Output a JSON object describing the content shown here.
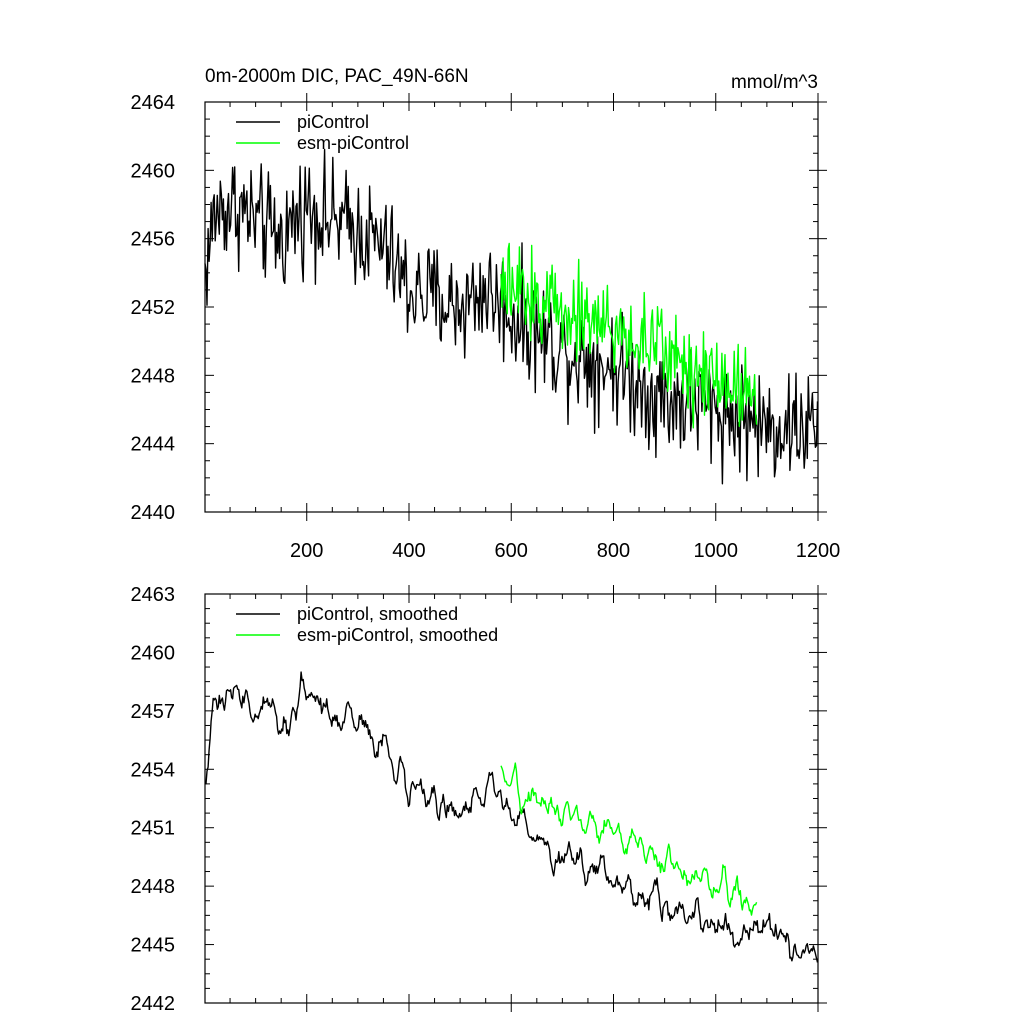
{
  "chart_data": [
    {
      "type": "line",
      "title": "0m-2000m DIC, PAC_49N-66N",
      "units": "mmol/m^3",
      "xlim": [
        1,
        1200
      ],
      "ylim": [
        2440,
        2464
      ],
      "yticks": [
        2440,
        2444,
        2448,
        2452,
        2456,
        2460,
        2464
      ],
      "xticks": [
        200,
        400,
        600,
        800,
        1000,
        1200
      ],
      "show_xtick_labels": true,
      "legend_position": "top-left",
      "series": [
        {
          "name": "piControl",
          "color": "#000000",
          "x_start": 1,
          "x_end": 1200,
          "anchors": [
            [
              1,
              2454
            ],
            [
              20,
              2457.5
            ],
            [
              60,
              2458
            ],
            [
              100,
              2457
            ],
            [
              150,
              2456
            ],
            [
              200,
              2458
            ],
            [
              250,
              2457
            ],
            [
              300,
              2456.5
            ],
            [
              350,
              2455.5
            ],
            [
              400,
              2453
            ],
            [
              450,
              2452.5
            ],
            [
              500,
              2452
            ],
            [
              550,
              2453
            ],
            [
              600,
              2451.5
            ],
            [
              650,
              2450.5
            ],
            [
              700,
              2449.5
            ],
            [
              750,
              2449
            ],
            [
              800,
              2448.5
            ],
            [
              850,
              2447.5
            ],
            [
              900,
              2446.5
            ],
            [
              950,
              2446.5
            ],
            [
              1000,
              2446
            ],
            [
              1050,
              2445.5
            ],
            [
              1100,
              2445
            ],
            [
              1150,
              2445
            ],
            [
              1200,
              2445
            ]
          ],
          "noise": 1.6,
          "smoothed": false
        },
        {
          "name": "esm-piControl",
          "color": "#00ff00",
          "x_start": 580,
          "x_end": 1080,
          "anchors": [
            [
              580,
              2453
            ],
            [
              650,
              2452.5
            ],
            [
              700,
              2452
            ],
            [
              750,
              2451.5
            ],
            [
              800,
              2450.5
            ],
            [
              850,
              2450
            ],
            [
              900,
              2449.5
            ],
            [
              950,
              2448.5
            ],
            [
              1000,
              2448
            ],
            [
              1050,
              2447.5
            ],
            [
              1080,
              2447
            ]
          ],
          "noise": 1.3,
          "smoothed": false
        }
      ]
    },
    {
      "type": "line",
      "title": "",
      "units": "",
      "xlim": [
        1,
        1200
      ],
      "ylim": [
        2442,
        2463
      ],
      "yticks": [
        2442,
        2445,
        2448,
        2451,
        2454,
        2457,
        2460,
        2463
      ],
      "xticks": [
        200,
        400,
        600,
        800,
        1000,
        1200
      ],
      "show_xtick_labels": false,
      "legend_position": "top-left",
      "series": [
        {
          "name": "piControl, smoothed",
          "color": "#000000",
          "x_start": 1,
          "x_end": 1200,
          "anchors": [
            [
              1,
              2454
            ],
            [
              20,
              2457.5
            ],
            [
              60,
              2458
            ],
            [
              100,
              2457
            ],
            [
              150,
              2456.5
            ],
            [
              200,
              2458
            ],
            [
              250,
              2457
            ],
            [
              300,
              2456.5
            ],
            [
              350,
              2455.5
            ],
            [
              400,
              2453
            ],
            [
              450,
              2452.5
            ],
            [
              500,
              2452
            ],
            [
              550,
              2453
            ],
            [
              600,
              2451.5
            ],
            [
              650,
              2450.5
            ],
            [
              700,
              2449.5
            ],
            [
              750,
              2449
            ],
            [
              800,
              2448.5
            ],
            [
              850,
              2447.5
            ],
            [
              900,
              2447
            ],
            [
              950,
              2446.5
            ],
            [
              1000,
              2446
            ],
            [
              1050,
              2446
            ],
            [
              1100,
              2445.5
            ],
            [
              1150,
              2445
            ],
            [
              1200,
              2445
            ]
          ],
          "noise": 1.1,
          "smoothed": true
        },
        {
          "name": "esm-piControl, smoothed",
          "color": "#00ff00",
          "x_start": 580,
          "x_end": 1080,
          "anchors": [
            [
              580,
              2453
            ],
            [
              650,
              2452.5
            ],
            [
              700,
              2452
            ],
            [
              750,
              2451.5
            ],
            [
              800,
              2450.5
            ],
            [
              850,
              2450
            ],
            [
              900,
              2449.5
            ],
            [
              950,
              2448.5
            ],
            [
              1000,
              2448
            ],
            [
              1050,
              2447.5
            ],
            [
              1080,
              2447
            ]
          ],
          "noise": 0.9,
          "smoothed": true
        }
      ]
    }
  ]
}
